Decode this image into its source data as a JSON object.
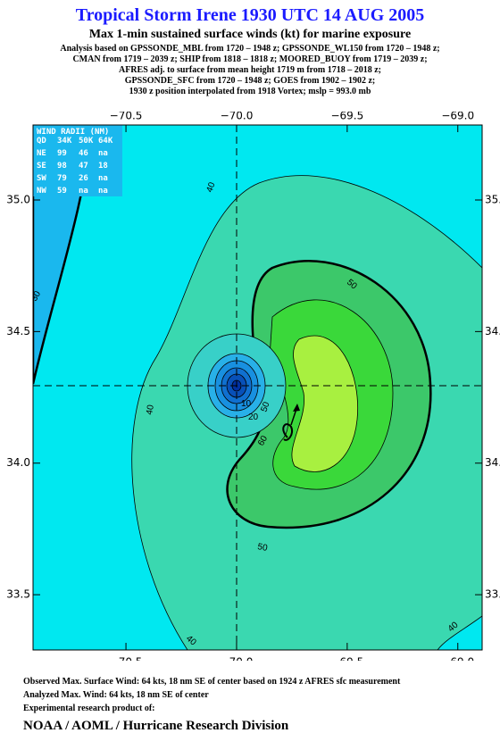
{
  "header": {
    "title": "Tropical Storm Irene 1930 UTC 14 AUG 2005",
    "subtitle": "Max 1-min sustained surface winds (kt) for marine exposure",
    "analysis": [
      "Analysis based on  GPSSONDE_MBL from 1720 – 1948 z;  GPSSONDE_WL150 from 1720 – 1948 z;",
      "CMAN from 1719 – 2039 z;  SHIP from 1818 – 1818 z;  MOORED_BUOY from 1719 – 2039 z;",
      "AFRES adj. to surface from mean height 1719 m from 1718 – 2018 z;",
      "GPSSONDE_SFC from 1720 – 1948 z;  GOES from 1902 – 1902 z;",
      "1930 z position interpolated from 1918 Vortex; mslp = 993.0 mb"
    ]
  },
  "map": {
    "xlim": [
      -70.92,
      -68.89
    ],
    "ylim": [
      33.29,
      35.285
    ],
    "xticks": [
      {
        "value": -70.5,
        "label": "−70.5"
      },
      {
        "value": -70.0,
        "label": "−70.0"
      },
      {
        "value": -69.5,
        "label": "−69.5"
      },
      {
        "value": -69.0,
        "label": "−69.0"
      }
    ],
    "yticks": [
      {
        "value": 35.0,
        "label": "35.0"
      },
      {
        "value": 34.5,
        "label": "34.5"
      },
      {
        "value": 34.0,
        "label": "34.0"
      },
      {
        "value": 33.5,
        "label": "33.5"
      }
    ],
    "contour_labels": [
      "30",
      "40",
      "40",
      "40",
      "40",
      "50",
      "50",
      "50",
      "60",
      "10",
      "20"
    ],
    "wind_radii": {
      "title": "WIND RADII (NM)",
      "header": [
        "QD",
        "34K",
        "50K",
        "64K"
      ],
      "rows": [
        [
          "NE",
          "99",
          "46",
          "na"
        ],
        [
          "SE",
          "98",
          "47",
          "18"
        ],
        [
          "SW",
          "79",
          "26",
          "na"
        ],
        [
          "NW",
          "59",
          "na",
          "na"
        ]
      ]
    }
  },
  "footer": {
    "lines": [
      "Observed Max. Surface Wind: 64 kts, 18 nm SE of center based on 1924 z AFRES sfc measurement",
      "Analyzed Max. Wind: 64 kts, 18 nm SE of center",
      "Experimental research product of:"
    ],
    "org": "NOAA / AOML / Hurricane Research Division"
  }
}
